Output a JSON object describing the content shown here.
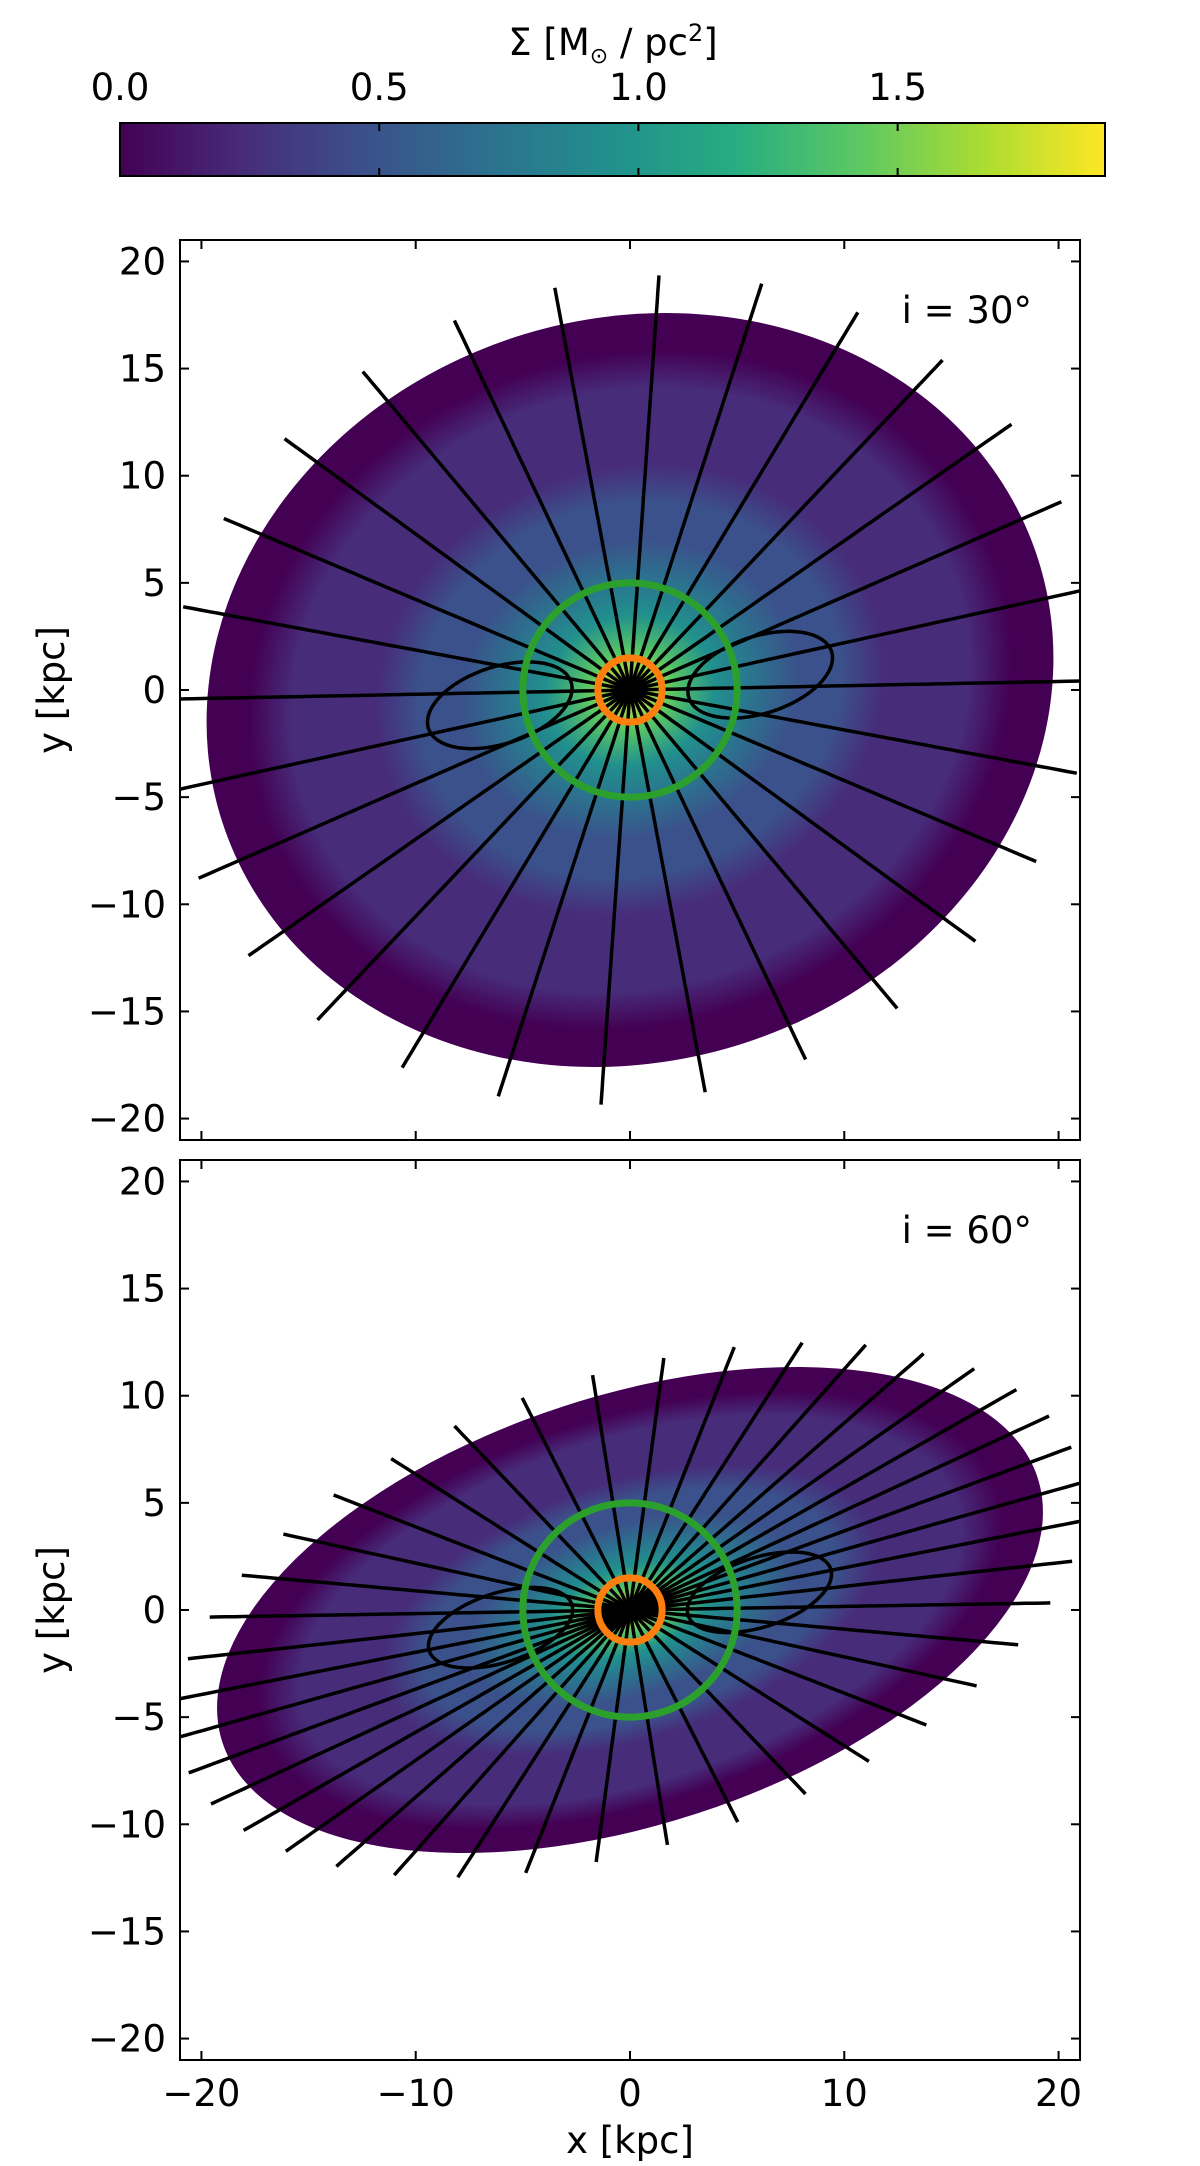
{
  "colorbar": {
    "label_prefix": "Σ [M",
    "label_sun": "⊙",
    "label_mid": " / pc",
    "label_sup": "2",
    "label_suffix": "]",
    "ticks": [
      0.0,
      0.5,
      1.0,
      1.5
    ],
    "tick_labels": [
      "0.0",
      "0.5",
      "1.0",
      "1.5"
    ],
    "range": [
      0.0,
      1.9
    ],
    "colormap": "viridis",
    "colormap_stops": [
      "#440154",
      "#472c7a",
      "#3b518b",
      "#2c718e",
      "#21908d",
      "#27ad81",
      "#5cc863",
      "#aadc32",
      "#fde725"
    ]
  },
  "colors": {
    "inner_ring": "#ff7f0e",
    "outer_ring": "#2ca02c",
    "field_lines": "#000000"
  },
  "chart_data": [
    {
      "type": "heatmap",
      "panel_label": "i = 30°",
      "inclination_deg": 30,
      "xlabel": "",
      "ylabel": "y [kpc]",
      "xlim": [
        -21,
        21
      ],
      "ylim": [
        -21,
        21
      ],
      "xticks": [
        -20,
        -10,
        0,
        10,
        20
      ],
      "yticks": [
        -20,
        -15,
        -10,
        -5,
        0,
        5,
        10,
        15,
        20
      ],
      "ytick_labels": [
        "−20",
        "−15",
        "−10",
        "−5",
        "0",
        "5",
        "10",
        "15",
        "20"
      ],
      "disk_radius_kpc": 20,
      "disk_tilt_deg": 18,
      "surface_density_peak": 1.9,
      "surface_density_scale_kpc": 6,
      "circles": [
        {
          "name": "inner",
          "radius_kpc": 1.5
        },
        {
          "name": "outer",
          "radius_kpc": 5
        }
      ]
    },
    {
      "type": "heatmap",
      "panel_label": "i = 60°",
      "inclination_deg": 60,
      "xlabel": "x [kpc]",
      "ylabel": "y [kpc]",
      "xlim": [
        -21,
        21
      ],
      "ylim": [
        -21,
        21
      ],
      "xticks": [
        -20,
        -10,
        0,
        10,
        20
      ],
      "xtick_labels": [
        "−20",
        "−10",
        "0",
        "10",
        "20"
      ],
      "yticks": [
        -20,
        -15,
        -10,
        -5,
        0,
        5,
        10,
        15,
        20
      ],
      "ytick_labels": [
        "−20",
        "−15",
        "−10",
        "−5",
        "0",
        "5",
        "10",
        "15",
        "20"
      ],
      "disk_radius_kpc": 20,
      "disk_tilt_deg": 18,
      "surface_density_peak": 1.9,
      "surface_density_scale_kpc": 6,
      "circles": [
        {
          "name": "inner",
          "radius_kpc": 1.5
        },
        {
          "name": "outer",
          "radius_kpc": 5
        }
      ]
    }
  ]
}
